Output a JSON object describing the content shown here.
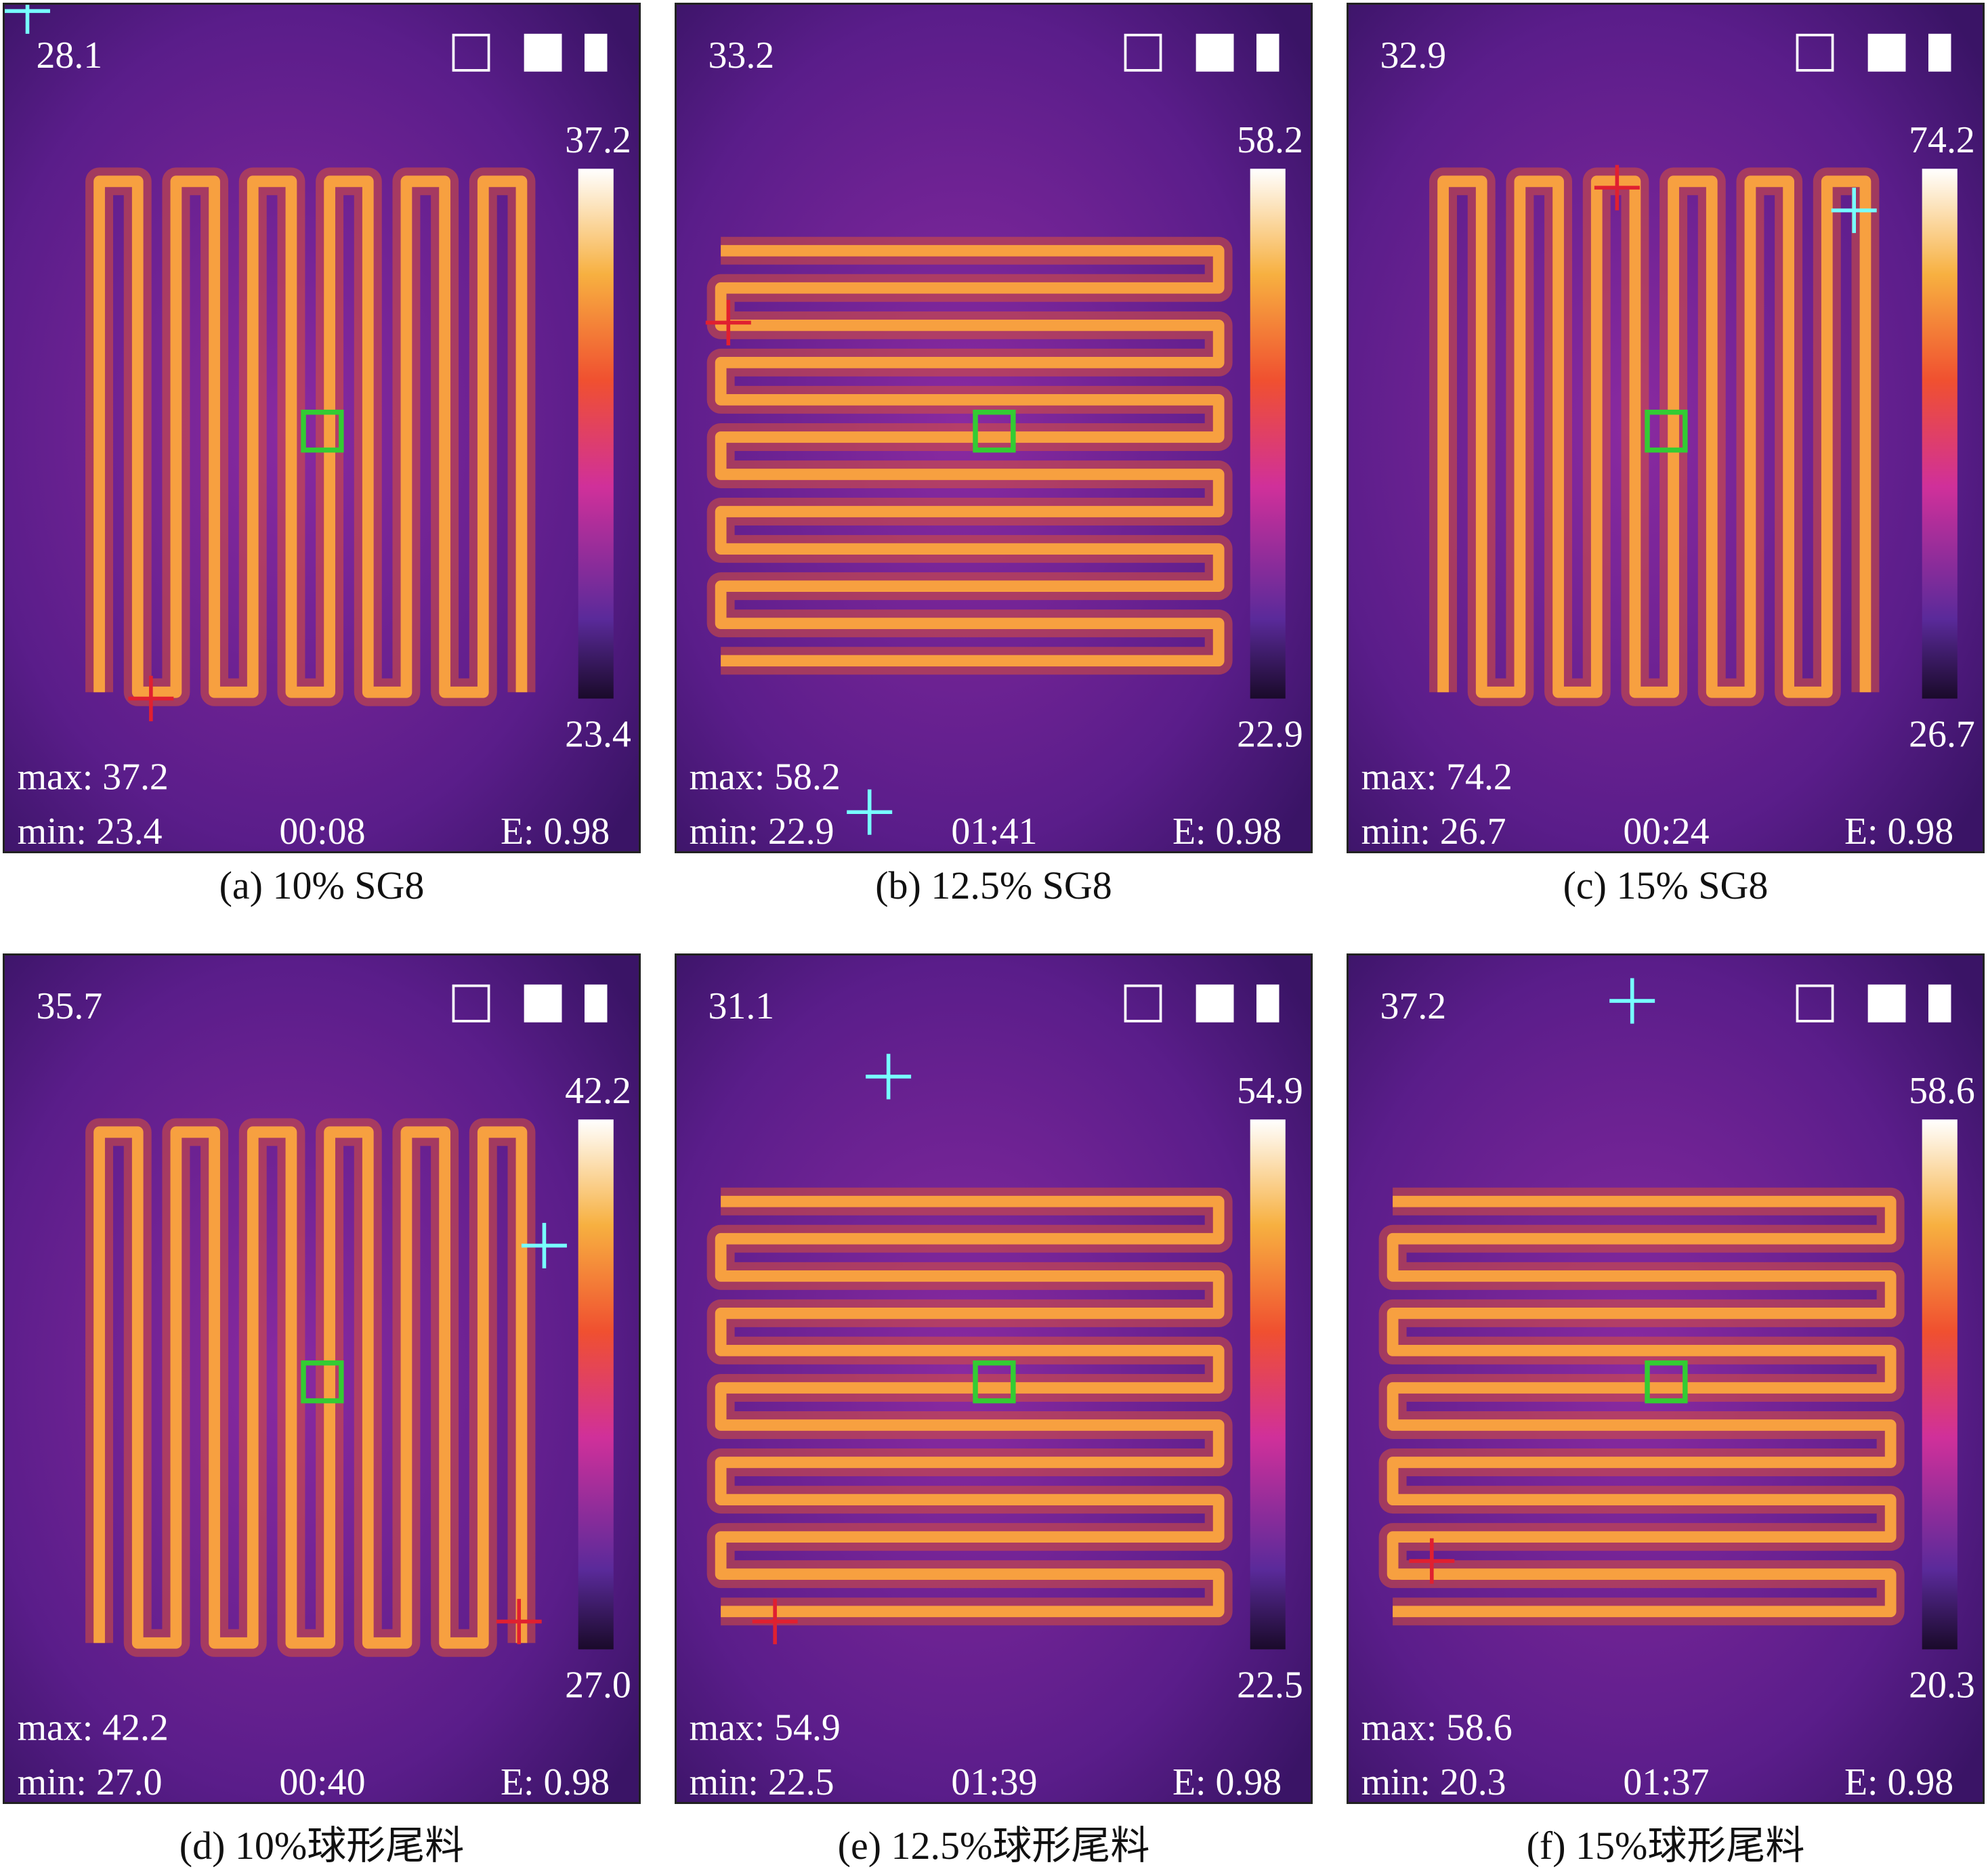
{
  "panels": [
    {
      "center_temp": "28.1",
      "scale_max": "37.2",
      "scale_min": "23.4",
      "max": "max: 37.2",
      "min": "min: 23.4",
      "time": "00:08",
      "emissivity": "E: 0.98",
      "caption": "(a) 10% SG8"
    },
    {
      "center_temp": "33.2",
      "scale_max": "58.2",
      "scale_min": "22.9",
      "max": "max: 58.2",
      "min": "min: 22.9",
      "time": "01:41",
      "emissivity": "E: 0.98",
      "caption": "(b) 12.5% SG8"
    },
    {
      "center_temp": "32.9",
      "scale_max": "74.2",
      "scale_min": "26.7",
      "max": "max: 74.2",
      "min": "min: 26.7",
      "time": "00:24",
      "emissivity": "E: 0.98",
      "caption": "(c) 15% SG8"
    },
    {
      "center_temp": "35.7",
      "scale_max": "42.2",
      "scale_min": "27.0",
      "max": "max: 42.2",
      "min": "min: 27.0",
      "time": "00:40",
      "emissivity": "E: 0.98",
      "caption": "(d) 10%球形尾料"
    },
    {
      "center_temp": "31.1",
      "scale_max": "54.9",
      "scale_min": "22.5",
      "max": "max: 54.9",
      "min": "min: 22.5",
      "time": "01:39",
      "emissivity": "E: 0.98",
      "caption": "(e) 12.5%球形尾料"
    },
    {
      "center_temp": "37.2",
      "scale_max": "58.6",
      "scale_min": "20.3",
      "max": "max: 58.6",
      "min": "min: 20.3",
      "time": "01:37",
      "emissivity": "E: 0.98",
      "caption": "(f) 15%球形尾料"
    }
  ]
}
